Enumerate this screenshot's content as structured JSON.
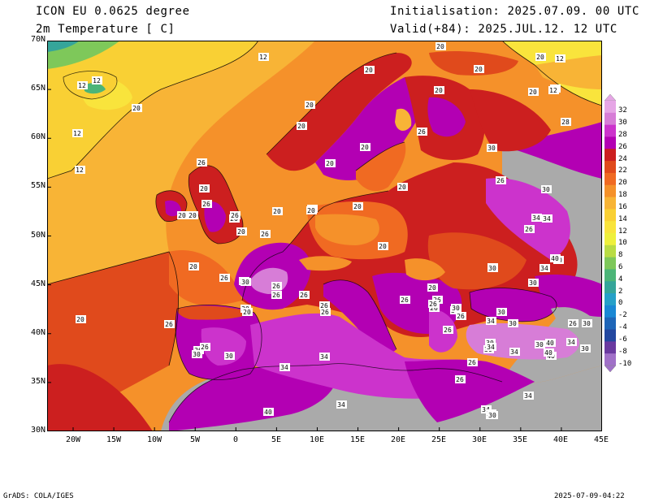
{
  "header": {
    "model": "ICON EU 0.0625 degree",
    "variable": "2m Temperature [ C]",
    "init": "Initialisation: 2025.07.09. 00 UTC",
    "valid": "Valid(+84): 2025.JUL.12. 12 UTC"
  },
  "footer": {
    "left": "GrADS: COLA/IGES",
    "right": "2025-07-09-04:22"
  },
  "axes": {
    "lat_labels": [
      "70N",
      "65N",
      "60N",
      "55N",
      "50N",
      "45N",
      "40N",
      "35N",
      "30N"
    ],
    "lon_labels": [
      "20W",
      "15W",
      "10W",
      "5W",
      "0",
      "5E",
      "10E",
      "15E",
      "20E",
      "25E",
      "30E",
      "35E",
      "40E",
      "45E"
    ]
  },
  "colorbar": {
    "levels": [
      "32",
      "30",
      "28",
      "26",
      "24",
      "22",
      "20",
      "18",
      "16",
      "14",
      "12",
      "10",
      "8",
      "6",
      "4",
      "2",
      "0",
      "-2",
      "-4",
      "-6",
      "-8",
      "-10"
    ],
    "colors": [
      "#e6a6e6",
      "#d77dd7",
      "#cc33cc",
      "#b300b3",
      "#cc1f1f",
      "#e04a1c",
      "#f06a22",
      "#f5912a",
      "#f8b436",
      "#f9d034",
      "#f9e43c",
      "#eef03c",
      "#b9dc44",
      "#7ec85a",
      "#4cb578",
      "#35a59a",
      "#26a0c8",
      "#1a88d4",
      "#1e66b8",
      "#2348a0",
      "#6a3aa0",
      "#a070c8"
    ]
  },
  "contour_labels": [
    {
      "t": "20"
    },
    {
      "t": "20"
    },
    {
      "t": "12"
    },
    {
      "t": "12"
    },
    {
      "t": "12"
    },
    {
      "t": "12"
    },
    {
      "t": "20"
    },
    {
      "t": "20"
    },
    {
      "t": "20"
    },
    {
      "t": "20"
    },
    {
      "t": "20"
    },
    {
      "t": "12"
    },
    {
      "t": "20"
    },
    {
      "t": "12"
    },
    {
      "t": "12"
    },
    {
      "t": "20"
    },
    {
      "t": "20"
    },
    {
      "t": "26"
    },
    {
      "t": "30"
    },
    {
      "t": "28"
    },
    {
      "t": "26"
    },
    {
      "t": "30"
    },
    {
      "t": "20"
    },
    {
      "t": "20"
    },
    {
      "t": "20"
    },
    {
      "t": "26"
    },
    {
      "t": "20"
    },
    {
      "t": "20"
    },
    {
      "t": "20"
    },
    {
      "t": "34"
    },
    {
      "t": "20"
    },
    {
      "t": "20"
    },
    {
      "t": "26"
    },
    {
      "t": "26"
    },
    {
      "t": "20"
    },
    {
      "t": "26"
    },
    {
      "t": "20"
    },
    {
      "t": "20"
    },
    {
      "t": "30"
    },
    {
      "t": "34"
    },
    {
      "t": "30"
    },
    {
      "t": "26"
    },
    {
      "t": "26"
    },
    {
      "t": "20"
    },
    {
      "t": "30"
    },
    {
      "t": "34"
    },
    {
      "t": "40"
    },
    {
      "t": "30"
    },
    {
      "t": "20"
    },
    {
      "t": "26"
    },
    {
      "t": "30"
    },
    {
      "t": "26"
    },
    {
      "t": "20"
    },
    {
      "t": "26"
    },
    {
      "t": "26"
    },
    {
      "t": "26"
    },
    {
      "t": "20"
    },
    {
      "t": "26"
    },
    {
      "t": "30"
    },
    {
      "t": "26"
    },
    {
      "t": "26"
    },
    {
      "t": "20"
    },
    {
      "t": "30"
    },
    {
      "t": "26"
    },
    {
      "t": "26"
    },
    {
      "t": "30"
    },
    {
      "t": "34"
    },
    {
      "t": "30"
    },
    {
      "t": "40"
    },
    {
      "t": "34"
    },
    {
      "t": "40"
    },
    {
      "t": "26"
    },
    {
      "t": "30"
    },
    {
      "t": "30"
    },
    {
      "t": "34"
    },
    {
      "t": "26"
    },
    {
      "t": "30"
    },
    {
      "t": "34"
    },
    {
      "t": "30"
    },
    {
      "t": "40"
    },
    {
      "t": "20"
    },
    {
      "t": "26"
    },
    {
      "t": "30"
    },
    {
      "t": "30"
    },
    {
      "t": "26"
    },
    {
      "t": "30"
    },
    {
      "t": "34"
    },
    {
      "t": "26"
    },
    {
      "t": "34"
    },
    {
      "t": "26"
    },
    {
      "t": "26"
    },
    {
      "t": "34"
    },
    {
      "t": "40"
    },
    {
      "t": "34"
    },
    {
      "t": "30"
    },
    {
      "t": "26"
    },
    {
      "t": "30"
    },
    {
      "t": "34"
    },
    {
      "t": "26"
    },
    {
      "t": "30"
    }
  ]
}
